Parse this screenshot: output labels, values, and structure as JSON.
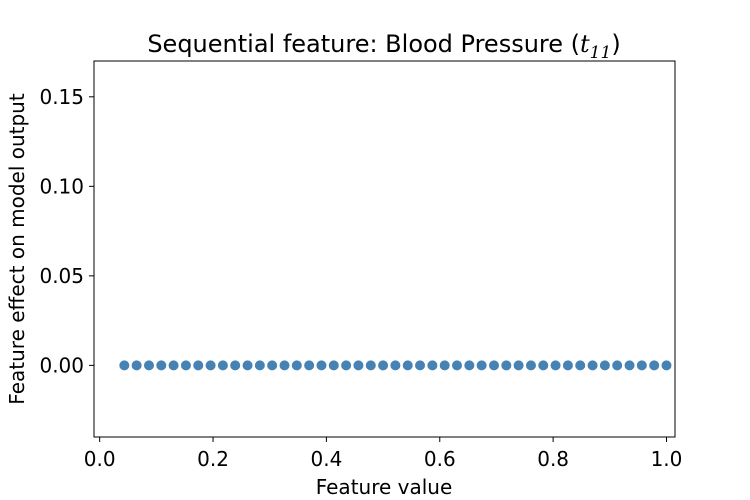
{
  "chart_data": {
    "type": "scatter",
    "title_prefix": "Sequential feature: Blood Pressure (",
    "title_math_base": "t",
    "title_math_sub": "11",
    "title_suffix": ")",
    "xlabel": "Feature value",
    "ylabel": "Feature effect on model output",
    "xlim": [
      -0.01,
      1.015
    ],
    "ylim": [
      -0.04,
      0.17
    ],
    "xticks": [
      0.0,
      0.2,
      0.4,
      0.6,
      0.8,
      1.0
    ],
    "xtick_labels": [
      "0.0",
      "0.2",
      "0.4",
      "0.6",
      "0.8",
      "1.0"
    ],
    "yticks": [
      0.0,
      0.05,
      0.1,
      0.15
    ],
    "ytick_labels": [
      "0.00",
      "0.05",
      "0.10",
      "0.15"
    ],
    "grid": false,
    "marker_color": "#4682b4",
    "series": [
      {
        "x": [
          0.0435,
          0.0652,
          0.087,
          0.1087,
          0.1304,
          0.1522,
          0.1739,
          0.1957,
          0.2174,
          0.2391,
          0.2609,
          0.2826,
          0.3043,
          0.3261,
          0.3478,
          0.3696,
          0.3913,
          0.413,
          0.4348,
          0.4565,
          0.4783,
          0.5,
          0.5217,
          0.5435,
          0.5652,
          0.587,
          0.6087,
          0.6304,
          0.6522,
          0.6739,
          0.6957,
          0.7174,
          0.7391,
          0.7609,
          0.7826,
          0.8043,
          0.8261,
          0.8478,
          0.8696,
          0.8913,
          0.913,
          0.9348,
          0.9565,
          0.9783,
          1.0
        ],
        "y": [
          0,
          0,
          0,
          0,
          0,
          0,
          0,
          0,
          0,
          0,
          0,
          0,
          0,
          0,
          0,
          0,
          0,
          0,
          0,
          0,
          0,
          0,
          0,
          0,
          0,
          0,
          0,
          0,
          0,
          0,
          0,
          0,
          0,
          0,
          0,
          0,
          0,
          0,
          0,
          0,
          0,
          0,
          0,
          0,
          0
        ]
      }
    ]
  }
}
